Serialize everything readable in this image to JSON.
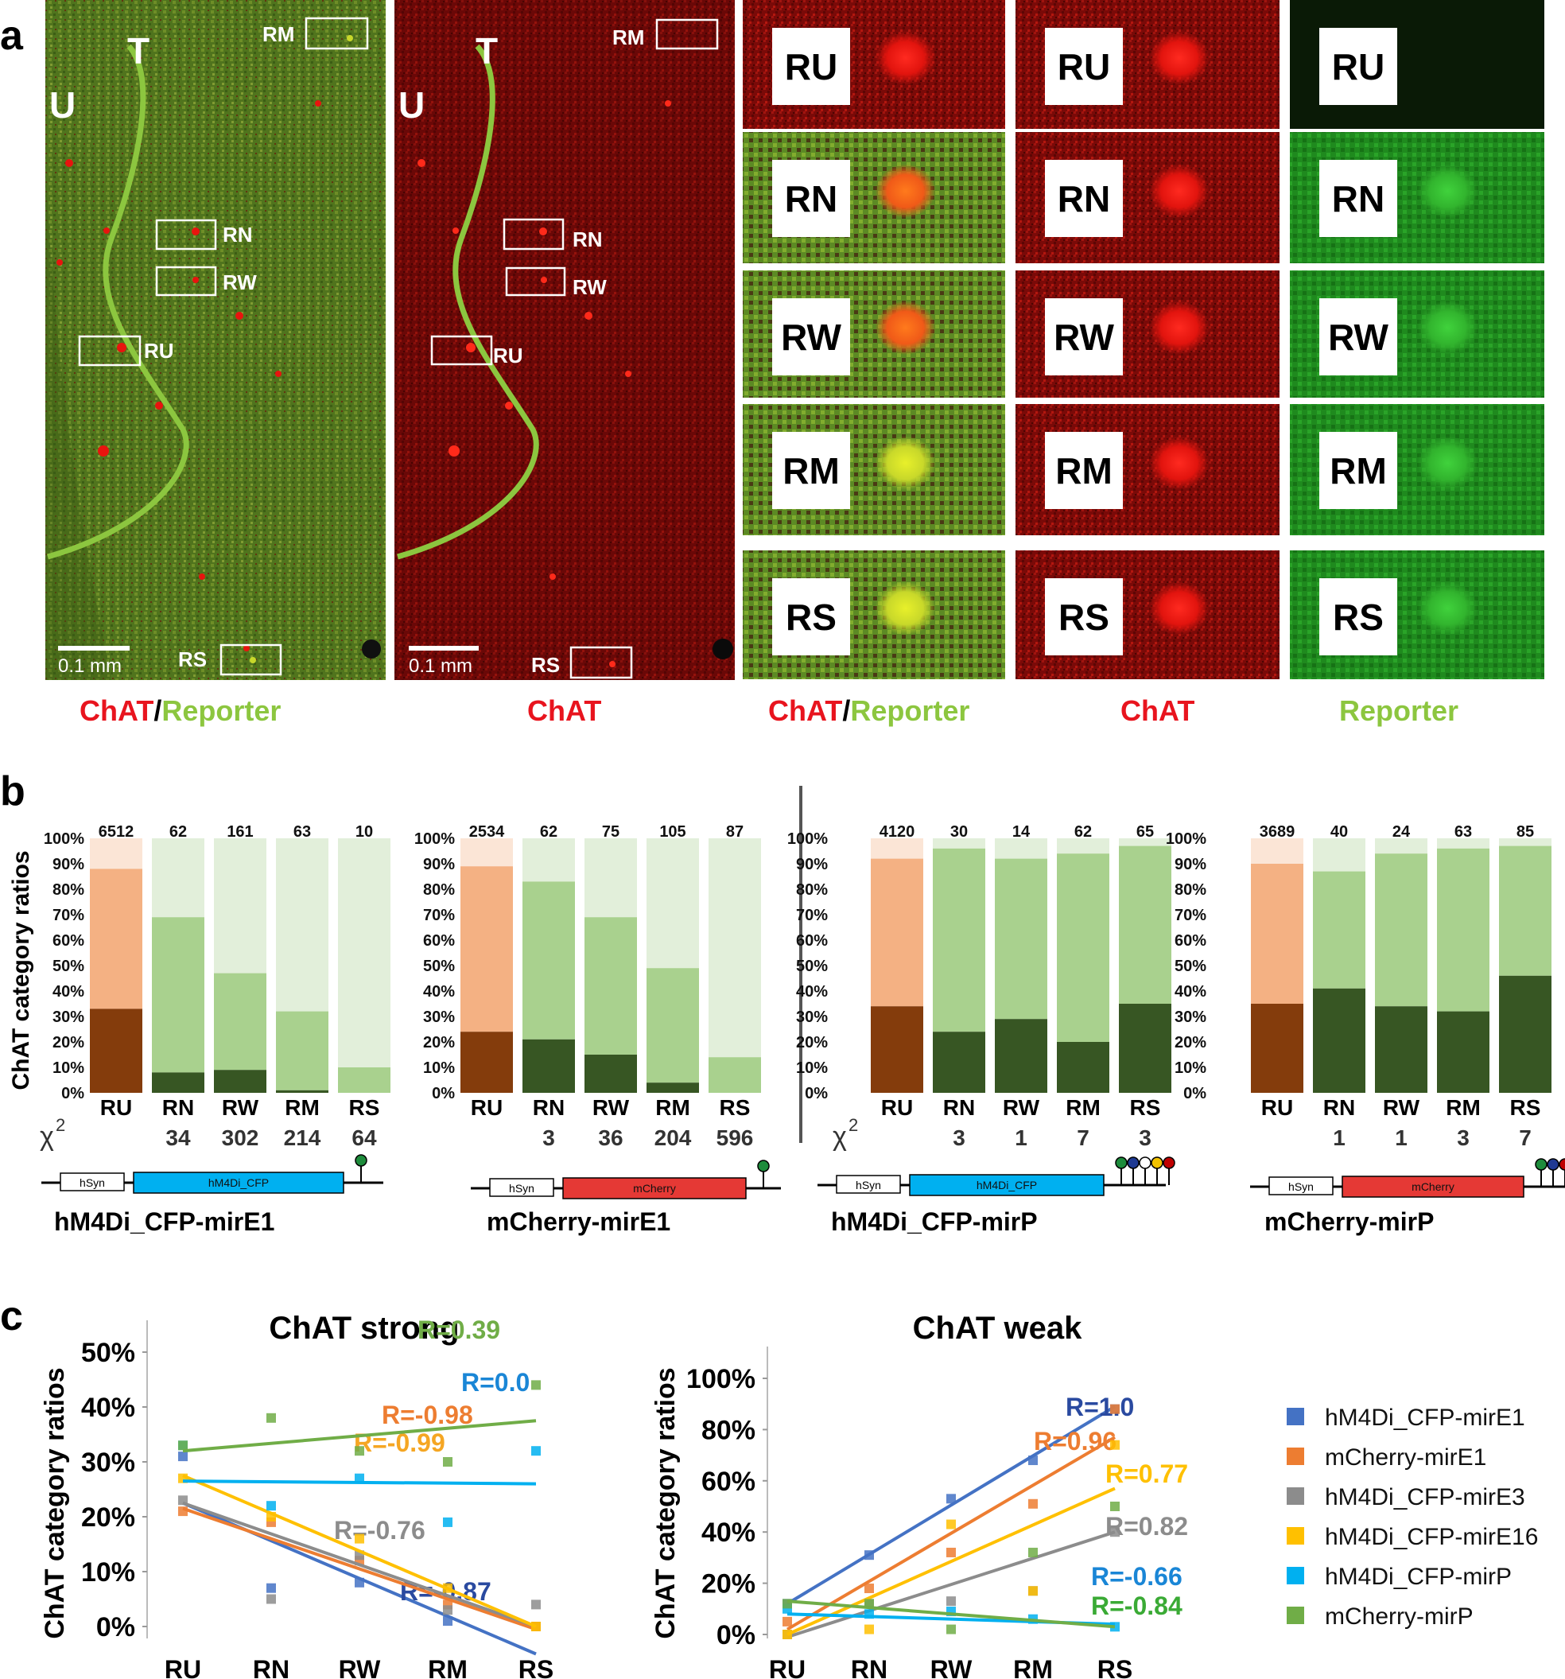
{
  "panel_letters": {
    "a": "a",
    "b": "b",
    "c": "c"
  },
  "colors": {
    "chat_red": "#e8141e",
    "reporter_green": "#8cc63f",
    "ru_dark": "#843c0c",
    "ru_mid": "#f4b183",
    "ru_light": "#fbe5d6",
    "green_dark": "#375623",
    "green_mid": "#a9d18e",
    "green_light": "#e2efda"
  },
  "panel_a": {
    "big_images": [
      {
        "labels": {
          "U": "U",
          "T": "T"
        },
        "boxes": {
          "RM": "RM",
          "RN": "RN",
          "RW": "RW",
          "RU": "RU",
          "RS": "RS"
        },
        "scale_bar": "0.1 mm",
        "caption_parts": [
          "ChAT",
          "/",
          "Reporter"
        ]
      },
      {
        "labels": {
          "U": "U",
          "T": "T"
        },
        "boxes": {
          "RM": "RM",
          "RN": "RN",
          "RW": "RW",
          "RU": "RU",
          "RS": "RS"
        },
        "scale_bar": "0.1 mm",
        "caption_parts": [
          "ChAT"
        ]
      }
    ],
    "zoom_rows": [
      "RU",
      "RN",
      "RW",
      "RM",
      "RS"
    ],
    "zoom_columns": [
      {
        "caption_parts": [
          "ChAT",
          "/",
          "Reporter"
        ]
      },
      {
        "caption_parts": [
          "ChAT"
        ]
      },
      {
        "caption_parts": [
          "Reporter"
        ]
      }
    ]
  },
  "panel_b": {
    "ylabel": "ChAT category ratios",
    "yticks": [
      "100%",
      "90%",
      "80%",
      "70%",
      "60%",
      "50%",
      "40%",
      "30%",
      "20%",
      "10%",
      "0%"
    ],
    "categories": [
      "RU",
      "RN",
      "RW",
      "RM",
      "RS"
    ],
    "chi_label": "χ",
    "chi_superscript": "2",
    "charts": [
      {
        "name": "hM4Di_CFP-mirE1",
        "counts": [
          "6512",
          "62",
          "161",
          "63",
          "10"
        ],
        "chi2": [
          "",
          "34",
          "302",
          "214",
          "64"
        ],
        "promoter": "hSyn",
        "gene": "hM4Di_CFP",
        "gene_color": "#00b0f0",
        "hairpins": [
          "#1e8c3c"
        ],
        "strong": [
          33,
          8,
          9,
          1,
          0
        ],
        "weak": [
          55,
          61,
          38,
          31,
          10
        ]
      },
      {
        "name": "mCherry-mirE1",
        "counts": [
          "2534",
          "62",
          "75",
          "105",
          "87"
        ],
        "chi2": [
          "",
          "3",
          "36",
          "204",
          "596"
        ],
        "promoter": "hSyn",
        "gene": "mCherry",
        "gene_color": "#e53935",
        "hairpins": [
          "#1e8c3c"
        ],
        "strong": [
          24,
          21,
          15,
          4,
          0
        ],
        "weak": [
          65,
          62,
          54,
          45,
          14
        ]
      },
      {
        "name": "hM4Di_CFP-mirP",
        "counts": [
          "4120",
          "30",
          "14",
          "62",
          "65"
        ],
        "chi2": [
          "",
          "3",
          "1",
          "7",
          "3"
        ],
        "promoter": "hSyn",
        "gene": "hM4Di_CFP",
        "gene_color": "#00b0f0",
        "hairpins": [
          "#1e8c3c",
          "#1f3a93",
          "#ffffff",
          "#f2c200",
          "#c00000"
        ],
        "strong": [
          34,
          24,
          29,
          20,
          35
        ],
        "weak": [
          58,
          72,
          63,
          74,
          62
        ]
      },
      {
        "name": "mCherry-mirP",
        "counts": [
          "3689",
          "40",
          "24",
          "63",
          "85"
        ],
        "chi2": [
          "",
          "1",
          "1",
          "3",
          "7"
        ],
        "promoter": "hSyn",
        "gene": "mCherry",
        "gene_color": "#e53935",
        "hairpins": [
          "#1e8c3c",
          "#1f3a93",
          "#c00000",
          "#ffffff",
          "#f2c200",
          "#c00000"
        ],
        "strong": [
          35,
          41,
          34,
          32,
          46
        ],
        "weak": [
          55,
          46,
          60,
          64,
          51
        ]
      }
    ]
  },
  "panel_c": {
    "ylabel": "ChAT category ratios",
    "legend": [
      {
        "name": "hM4Di_CFP-mirE1",
        "color": "#4472c4"
      },
      {
        "name": "mCherry-mirE1",
        "color": "#ed7d31"
      },
      {
        "name": "hM4Di_CFP-mirE3",
        "color": "#8c8c8c"
      },
      {
        "name": "hM4Di_CFP-mirE16",
        "color": "#ffc000"
      },
      {
        "name": "hM4Di_CFP-mirP",
        "color": "#00b0f0"
      },
      {
        "name": "mCherry-mirP",
        "color": "#70ad47"
      }
    ]
  },
  "chart_data": [
    {
      "type": "scatter",
      "title": "ChAT strong",
      "ylabel": "ChAT category ratios",
      "categories": [
        "RU",
        "RN",
        "RW",
        "RM",
        "RS"
      ],
      "yticks": [
        "50%",
        "40%",
        "30%",
        "20%",
        "10%",
        "0%"
      ],
      "ylim": [
        -7,
        54
      ],
      "series": [
        {
          "name": "hM4Di_CFP-mirE1",
          "color": "#4472c4",
          "values": [
            31,
            7,
            8,
            1,
            0
          ],
          "fit": [
            22.5,
            -5
          ],
          "r_label": "R=-0.87",
          "label_color": "#2a4aa0"
        },
        {
          "name": "mCherry-mirE1",
          "color": "#ed7d31",
          "values": [
            21,
            19,
            12,
            4,
            0
          ],
          "fit": [
            21.5,
            -0.5
          ],
          "r_label": "R=-0.98",
          "label_color": "#ed7d31"
        },
        {
          "name": "hM4Di_CFP-mirE3",
          "color": "#8c8c8c",
          "values": [
            23,
            5,
            13,
            3,
            4
          ],
          "fit": [
            22.5,
            0
          ],
          "r_label": "R=-0.76",
          "label_color": "#8c8c8c"
        },
        {
          "name": "hM4Di_CFP-mirE16",
          "color": "#ffc000",
          "values": [
            27,
            20,
            16,
            7,
            0
          ],
          "fit": [
            27.5,
            0
          ],
          "r_label": "R=-0.99",
          "label_color": "#f5a623"
        },
        {
          "name": "hM4Di_CFP-mirP",
          "color": "#00b0f0",
          "values": [
            33,
            22,
            27,
            19,
            32
          ],
          "fit": [
            26.5,
            26
          ],
          "r_label": "R=0.0",
          "label_color": "#1a86d6"
        },
        {
          "name": "mCherry-mirP",
          "color": "#70ad47",
          "values": [
            33,
            38,
            32,
            30,
            44
          ],
          "fit": [
            32,
            37.5
          ],
          "r_label": "R=0.39",
          "label_color": "#70ad47"
        }
      ]
    },
    {
      "type": "scatter",
      "title": "ChAT weak",
      "ylabel": "ChAT category ratios",
      "categories": [
        "RU",
        "RN",
        "RW",
        "RM",
        "RS"
      ],
      "yticks": [
        "100%",
        "80%",
        "60%",
        "40%",
        "20%",
        "0%"
      ],
      "ylim": [
        -5,
        105
      ],
      "series": [
        {
          "name": "hM4Di_CFP-mirE1",
          "color": "#4472c4",
          "values": [
            12,
            31,
            53,
            68,
            88
          ],
          "fit": [
            12,
            89
          ],
          "r_label": "R=1.0",
          "label_color": "#2a4aa0"
        },
        {
          "name": "mCherry-mirE1",
          "color": "#ed7d31",
          "values": [
            5,
            18,
            32,
            51,
            88
          ],
          "fit": [
            2,
            77
          ],
          "r_label": "R=0.96",
          "label_color": "#ed7d31"
        },
        {
          "name": "hM4Di_CFP-mirE3",
          "color": "#8c8c8c",
          "values": [
            0,
            12,
            13,
            17,
            40
          ],
          "fit": [
            -1,
            40
          ],
          "r_label": "R=0.82",
          "label_color": "#8c8c8c"
        },
        {
          "name": "hM4Di_CFP-mirE16",
          "color": "#ffc000",
          "values": [
            0,
            2,
            43,
            17,
            74
          ],
          "fit": [
            0,
            57
          ],
          "r_label": "R=0.77",
          "label_color": "#ffc000"
        },
        {
          "name": "hM4Di_CFP-mirP",
          "color": "#00b0f0",
          "values": [
            10,
            8,
            9,
            6,
            3
          ],
          "fit": [
            8,
            4
          ],
          "r_label": "R=-0.66",
          "label_color": "#1a86d6"
        },
        {
          "name": "mCherry-mirP",
          "color": "#70ad47",
          "values": [
            12,
            12,
            2,
            32,
            50
          ],
          "fit": [
            13,
            3
          ],
          "r_label": "R=-0.84",
          "label_color": "#3aaa35"
        }
      ]
    }
  ]
}
